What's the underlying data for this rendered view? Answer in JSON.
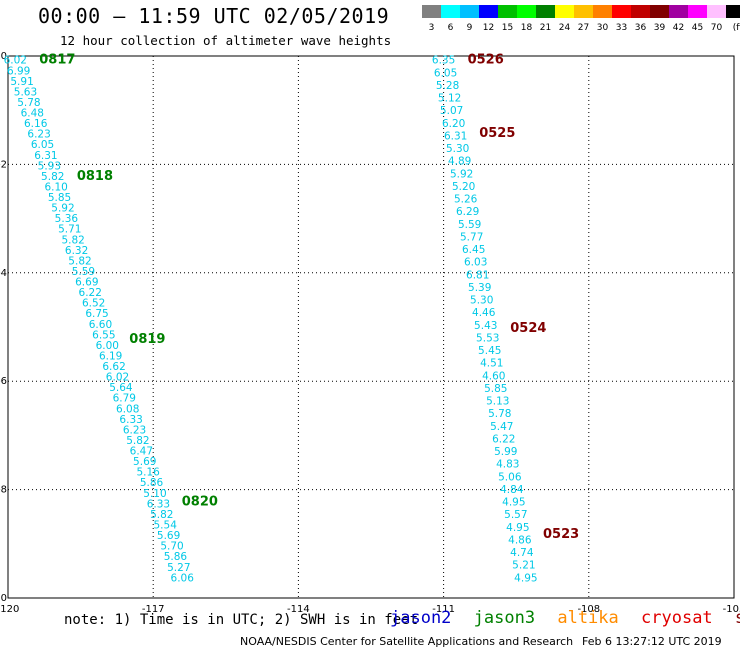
{
  "title": "00:00 – 11:59 UTC 02/05/2019",
  "subtitle": "12 hour collection of altimeter wave heights",
  "legend": {
    "labels": [
      "3",
      "6",
      "9",
      "12",
      "15",
      "18",
      "21",
      "24",
      "27",
      "30",
      "33",
      "36",
      "39",
      "42",
      "45",
      "70",
      "(ft)"
    ],
    "colors": [
      "#808080",
      "#00ffff",
      "#00c0ff",
      "#0000ff",
      "#00c000",
      "#00ff00",
      "#008000",
      "#ffff00",
      "#ffc000",
      "#ff8000",
      "#ff0000",
      "#c00000",
      "#800000",
      "#a000a0",
      "#ff00ff",
      "#ffc0ff",
      "#000000"
    ]
  },
  "note": "note: 1) Time is in UTC; 2) SWH is in feet",
  "satellites": [
    {
      "name": "jason2",
      "color": "#0000c8"
    },
    {
      "name": "jason3",
      "color": "#008000"
    },
    {
      "name": "altika",
      "color": "#ff8c00"
    },
    {
      "name": "cryosat",
      "color": "#e00000"
    },
    {
      "name": "s3a",
      "color": "#800000"
    }
  ],
  "credit_left": "NOAA/NESDIS Center for Satellite Applications and Research",
  "credit_right": "Feb  6 13:27:12 UTC 2019",
  "chart_data": {
    "type": "scatter",
    "title": "00:00 – 11:59 UTC 02/05/2019",
    "subtitle": "12 hour collection of altimeter wave heights",
    "xlim": [
      -120,
      -105
    ],
    "ylim": [
      -10,
      0
    ],
    "xticks": [
      "-120",
      "-117",
      "-114",
      "-111",
      "-108",
      "-105"
    ],
    "yticks": [
      "0",
      "-2",
      "-4",
      "-6",
      "-8",
      "-10"
    ],
    "grid": true,
    "value_color": "#00c8e6",
    "tracks": [
      {
        "name": "jason3",
        "color": "#008000",
        "lon_start": -119.85,
        "lat_start": -0.05,
        "lon_end": -116.4,
        "lat_end": -9.6,
        "values": [
          "6.02",
          "6.99",
          "5.91",
          "5.63",
          "5.78",
          "6.48",
          "6.16",
          "6.23",
          "6.05",
          "6.31",
          "5.93",
          "5.82",
          "6.10",
          "5.85",
          "5.92",
          "5.36",
          "5.71",
          "5.82",
          "6.32",
          "5.82",
          "5.59",
          "6.69",
          "6.22",
          "6.52",
          "6.75",
          "6.60",
          "6.55",
          "6.00",
          "6.19",
          "6.62",
          "6.02",
          "5.64",
          "6.79",
          "6.08",
          "6.33",
          "6.23",
          "5.82",
          "6.47",
          "5.69",
          "5.16",
          "5.86",
          "5.10",
          "6.33",
          "5.82",
          "5.54",
          "5.69",
          "5.70",
          "5.86",
          "5.27",
          "6.06"
        ],
        "times": [
          {
            "label": "0817",
            "lat": -0.05
          },
          {
            "label": "0818",
            "lat": -2.2
          },
          {
            "label": "0819",
            "lat": -5.2
          },
          {
            "label": "0820",
            "lat": -8.2
          }
        ]
      },
      {
        "name": "s3a",
        "color": "#800000",
        "lon_start": -111.0,
        "lat_start": -0.05,
        "lon_end": -109.3,
        "lat_end": -9.6,
        "values": [
          "6.35",
          "6.05",
          "5.28",
          "5.12",
          "5.07",
          "6.20",
          "6.31",
          "5.30",
          "4.89",
          "5.92",
          "5.20",
          "5.26",
          "6.29",
          "5.59",
          "5.77",
          "6.45",
          "6.03",
          "6.81",
          "5.39",
          "5.30",
          "4.46",
          "5.43",
          "5.53",
          "5.45",
          "4.51",
          "4.60",
          "5.85",
          "5.13",
          "5.78",
          "5.47",
          "6.22",
          "5.99",
          "4.83",
          "5.06",
          "4.84",
          "4.95",
          "5.57",
          "4.95",
          "4.86",
          "4.74",
          "5.21",
          "4.95"
        ],
        "times": [
          {
            "label": "0526",
            "lat": -0.05
          },
          {
            "label": "0525",
            "lat": -1.4
          },
          {
            "label": "0524",
            "lat": -5.0
          },
          {
            "label": "0523",
            "lat": -8.8
          }
        ]
      }
    ]
  }
}
